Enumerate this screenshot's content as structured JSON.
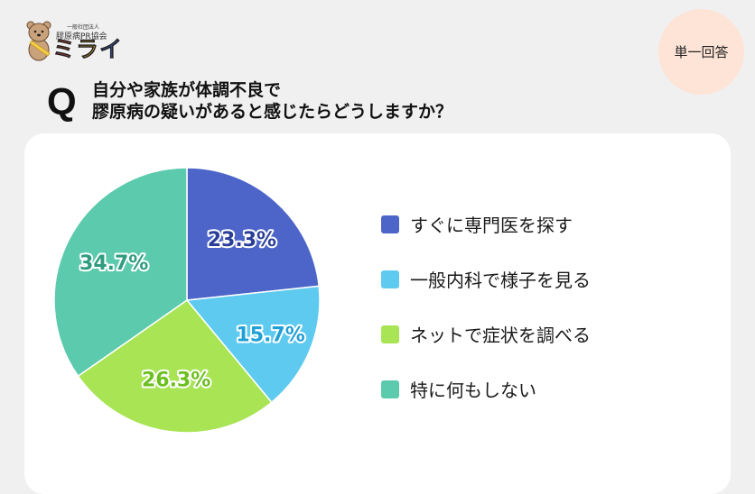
{
  "logo": {
    "org_type": "一般社団法人",
    "org_name": "膠原病PR協会",
    "brand_chars": [
      "ミ",
      "ラ",
      "イ"
    ],
    "brand_colors": [
      "#e0473b",
      "#f3b32b",
      "#3b62c4"
    ],
    "mascot": "quokka-mascot"
  },
  "badge": {
    "label": "単一回答"
  },
  "question": {
    "mark": "Q",
    "line1": "自分や家族が体調不良で",
    "line2": "膠原病の疑いがあると感じたらどうしますか？"
  },
  "legend": {
    "items": [
      {
        "label": "すぐに専門医を探す",
        "color": "#4d65c8"
      },
      {
        "label": "一般内科で様子を見る",
        "color": "#5fcaf0"
      },
      {
        "label": "ネットで症状を調べる",
        "color": "#a8e454"
      },
      {
        "label": "特に何もしない",
        "color": "#5bcaad"
      }
    ]
  },
  "chart_data": {
    "type": "pie",
    "title": "自分や家族が体調不良で膠原病の疑いがあると感じたらどうしますか？",
    "subtitle": "単一回答",
    "categories": [
      "すぐに専門医を探す",
      "一般内科で様子を見る",
      "ネットで症状を調べる",
      "特に何もしない"
    ],
    "values": [
      23.3,
      15.7,
      26.3,
      34.7
    ],
    "labels": [
      "23.3%",
      "15.7%",
      "26.3%",
      "34.7%"
    ],
    "colors": [
      "#4d65c8",
      "#5fcaf0",
      "#a8e454",
      "#5bcaad"
    ],
    "label_colors": [
      "#2b3f99",
      "#1f9fd6",
      "#6cbf1f",
      "#2f9c80"
    ],
    "start_angle": "12 o'clock, clockwise",
    "legend_position": "right",
    "unit": "%"
  }
}
